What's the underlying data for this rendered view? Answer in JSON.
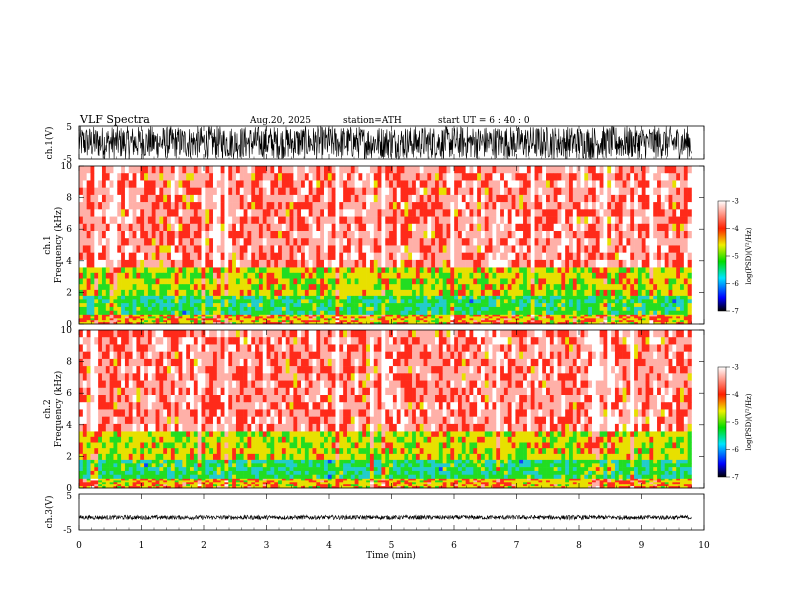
{
  "header": {
    "title": "VLF  Spectra",
    "date": "Aug.20, 2025",
    "station": "station=ATH",
    "start": "start  UT  =   6  : 40 : 0"
  },
  "chart_data": [
    {
      "type": "line",
      "name": "ch1-waveform",
      "ylabel": "ch.1(V)",
      "ylim": [
        -5,
        5
      ],
      "yticks": [
        "5",
        "-5"
      ],
      "xlim": [
        0,
        10
      ],
      "data_extent_min": 9.8,
      "amplitude_range": [
        -5,
        5
      ]
    },
    {
      "type": "heatmap",
      "name": "ch1-spectrogram",
      "ylabel": "ch.1\nFrequency  (kHz)",
      "ylabel_line1": "ch.1",
      "ylabel_line2": "Frequency  (kHz)",
      "ylim": [
        0,
        10
      ],
      "yticks": [
        "0",
        "2",
        "4",
        "6",
        "8",
        "10"
      ],
      "xlim": [
        0,
        10
      ],
      "data_extent_min": 9.8,
      "bands_khz": [
        {
          "range": [
            0,
            0.6
          ],
          "log_psd": -4.2
        },
        {
          "range": [
            0.6,
            1.8
          ],
          "log_psd": -5.0
        },
        {
          "range": [
            1.8,
            3.6
          ],
          "log_psd": -4.4
        },
        {
          "range": [
            3.6,
            10
          ],
          "log_psd": -3.6
        }
      ],
      "colorbar": {
        "label": "log(PSD)(V²/Hz)",
        "range": [
          -7,
          -3
        ],
        "ticks": [
          "-3",
          "-4",
          "-5",
          "-6",
          "-7"
        ]
      }
    },
    {
      "type": "heatmap",
      "name": "ch2-spectrogram",
      "ylabel_line1": "ch.2",
      "ylabel_line2": "Frequency  (kHz)",
      "ylim": [
        0,
        10
      ],
      "yticks": [
        "0",
        "2",
        "4",
        "6",
        "8",
        "10"
      ],
      "xlim": [
        0,
        10
      ],
      "data_extent_min": 9.8,
      "bands_khz": [
        {
          "range": [
            0,
            0.6
          ],
          "log_psd": -4.2
        },
        {
          "range": [
            0.6,
            1.8
          ],
          "log_psd": -5.0
        },
        {
          "range": [
            1.8,
            3.6
          ],
          "log_psd": -4.4
        },
        {
          "range": [
            3.6,
            10
          ],
          "log_psd": -3.6
        }
      ],
      "colorbar": {
        "label": "log(PSD)(V²/Hz)",
        "range": [
          -7,
          -3
        ],
        "ticks": [
          "-3",
          "-4",
          "-5",
          "-6",
          "-7"
        ]
      }
    },
    {
      "type": "line",
      "name": "ch3-waveform",
      "ylabel": "ch.3(V)",
      "ylim": [
        -5,
        5
      ],
      "yticks": [
        "5",
        "-5"
      ],
      "xlim": [
        0,
        10
      ],
      "data_extent_min": 9.8,
      "amplitude_range": [
        -0.6,
        0.6
      ],
      "baseline": -1.5
    }
  ],
  "xaxis": {
    "label": "Time  (min)",
    "ticks": [
      "0",
      "1",
      "2",
      "3",
      "4",
      "5",
      "6",
      "7",
      "8",
      "9",
      "10"
    ]
  },
  "colors": {
    "spectrogram_high": "#ff2a1a",
    "spectrogram_mid": "#e8e000",
    "spectrogram_low": "#22dd22",
    "waveform": "#000000"
  }
}
